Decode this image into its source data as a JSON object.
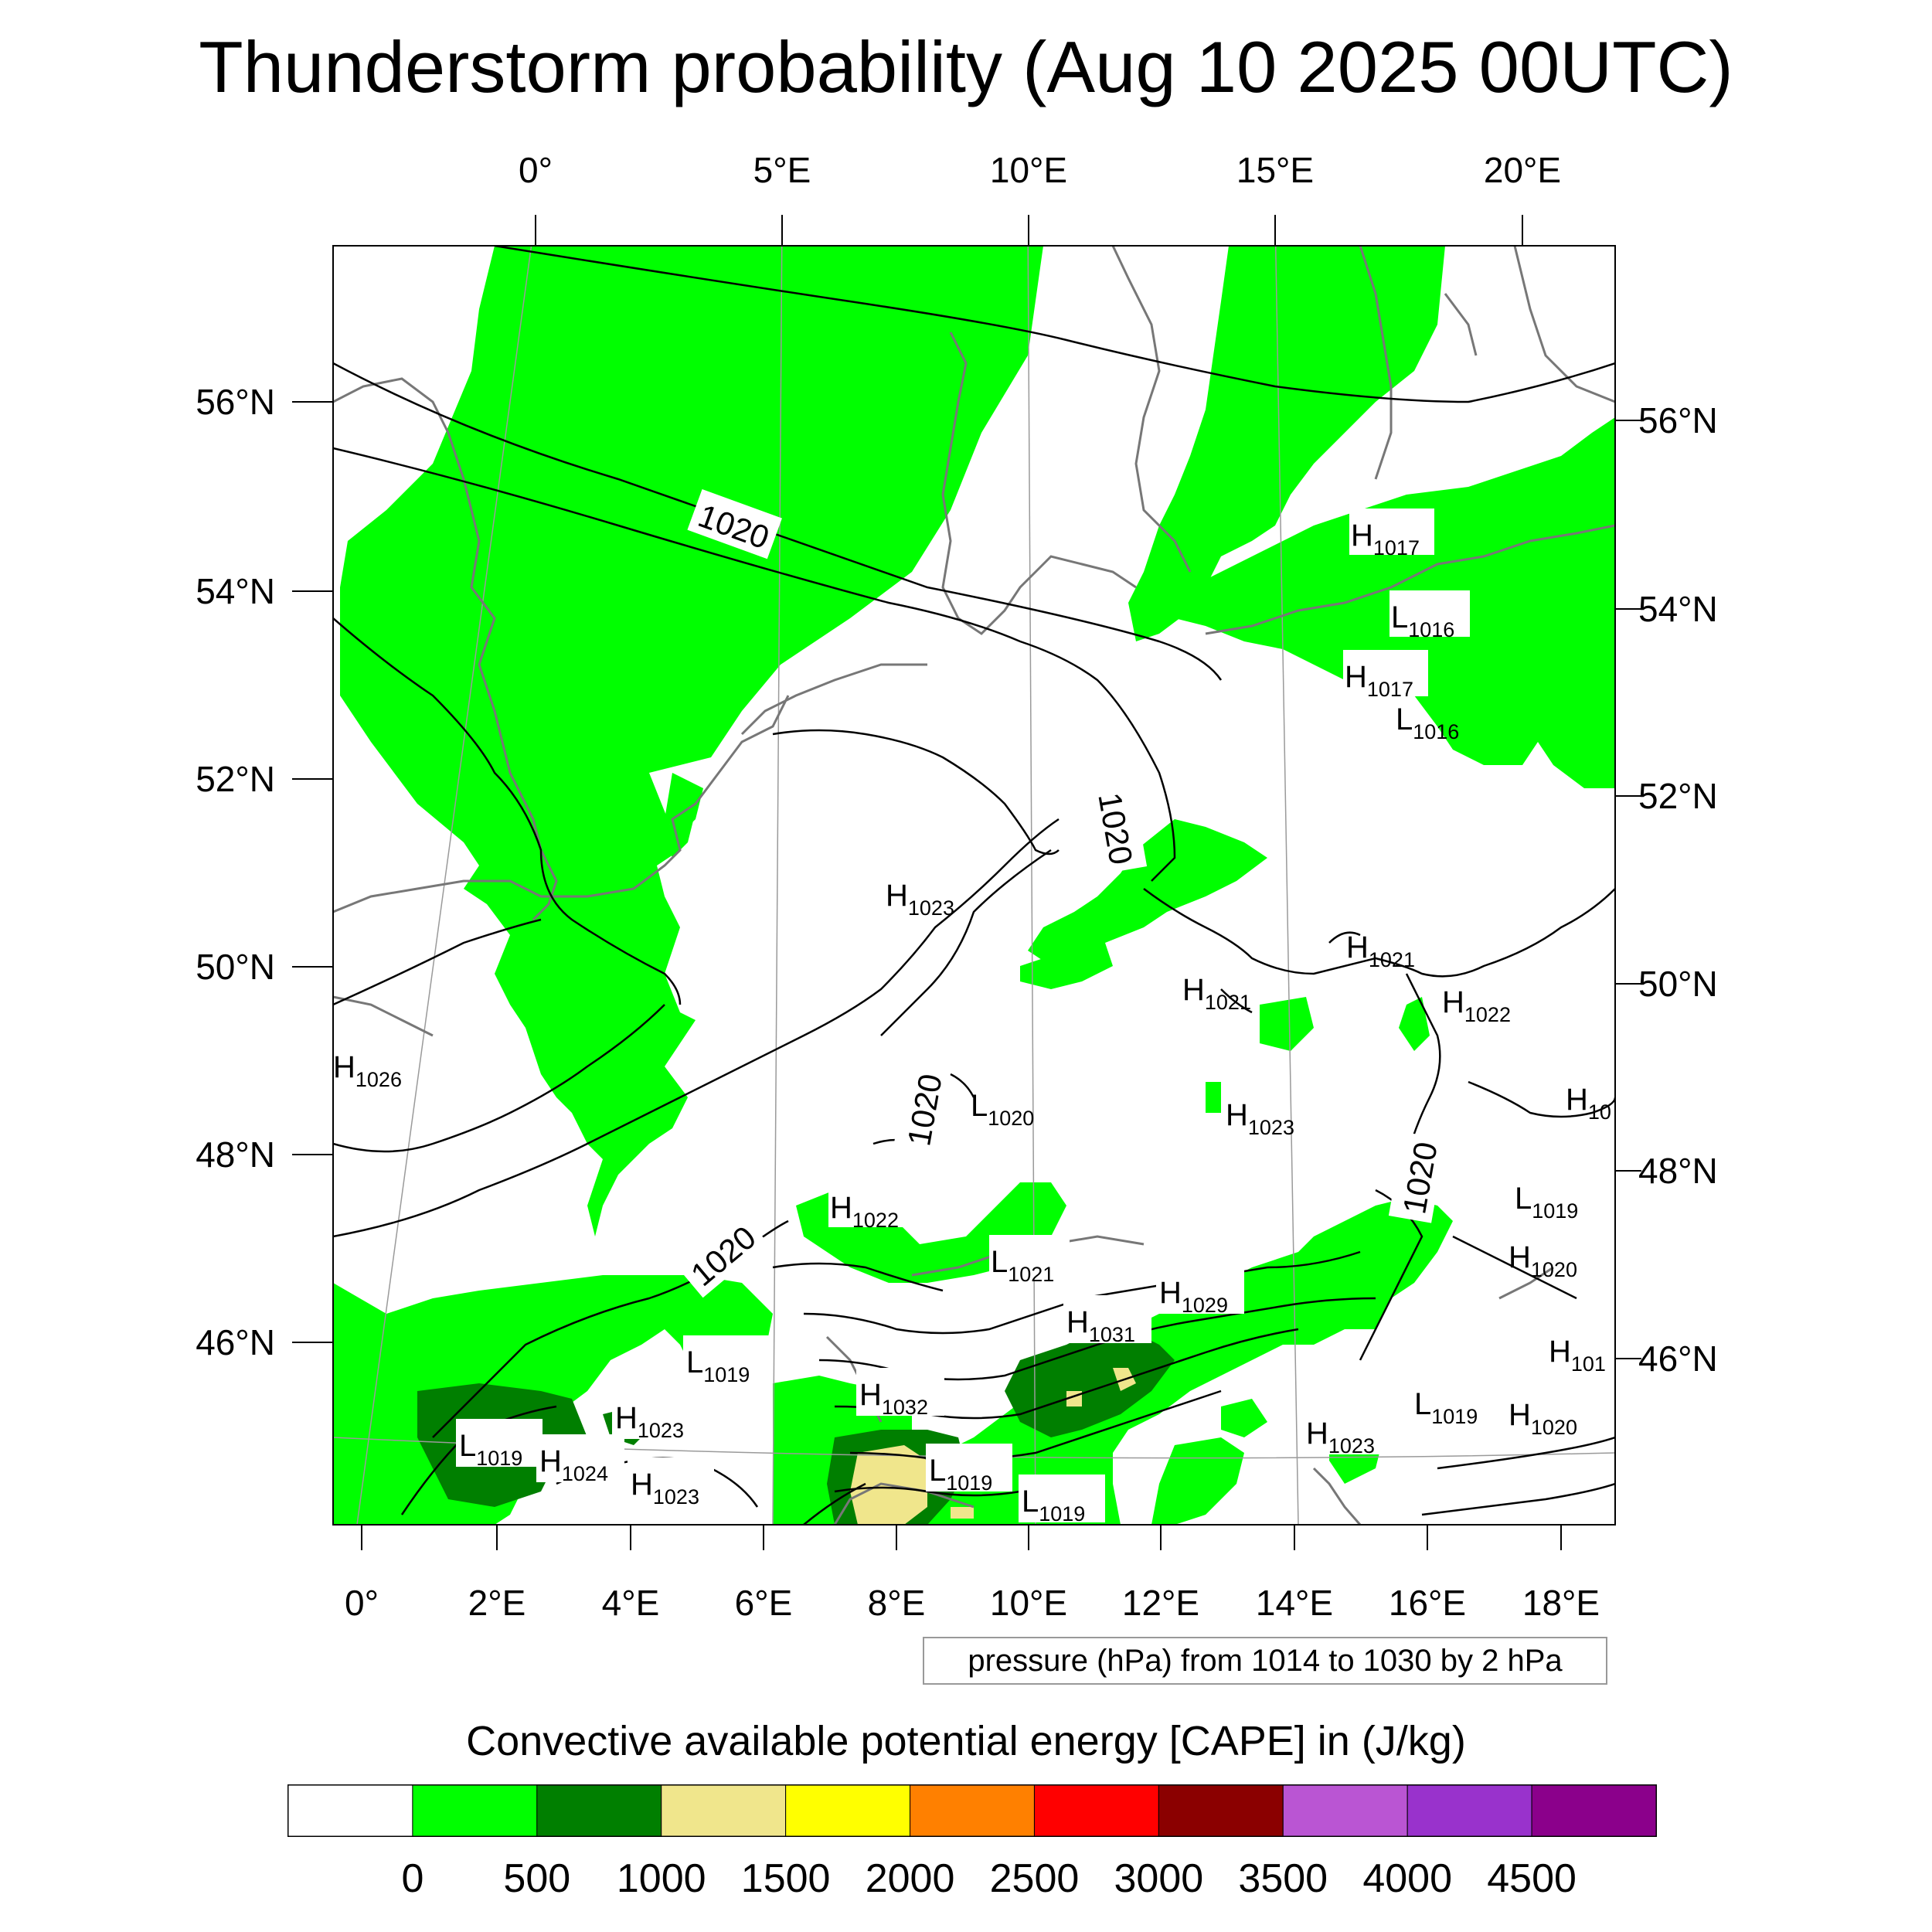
{
  "title": "Thunderstorm probability (Aug 10 2025 00UTC)",
  "top_lon_labels": [
    "0°",
    "5°E",
    "10°E",
    "15°E",
    "20°E"
  ],
  "bottom_lon_labels": [
    "0°",
    "2°E",
    "4°E",
    "6°E",
    "8°E",
    "10°E",
    "12°E",
    "14°E",
    "16°E",
    "18°E"
  ],
  "left_lat_labels": [
    "56°N",
    "54°N",
    "52°N",
    "50°N",
    "48°N",
    "46°N"
  ],
  "right_lat_labels": [
    "56°N",
    "54°N",
    "52°N",
    "50°N",
    "48°N",
    "46°N"
  ],
  "contour_labels": [
    "1020",
    "1020",
    "1020",
    "1020",
    "1020"
  ],
  "pressure_centers": [
    {
      "type": "H",
      "value": "1017"
    },
    {
      "type": "L",
      "value": "1016"
    },
    {
      "type": "H",
      "value": "1017"
    },
    {
      "type": "L",
      "value": "1016"
    },
    {
      "type": "H",
      "value": "1023"
    },
    {
      "type": "H",
      "value": "1021"
    },
    {
      "type": "H",
      "value": "1021"
    },
    {
      "type": "H",
      "value": "1022"
    },
    {
      "type": "H",
      "value": "1026"
    },
    {
      "type": "L",
      "value": "1020"
    },
    {
      "type": "H",
      "value": "1023"
    },
    {
      "type": "H",
      "value": "10"
    },
    {
      "type": "L",
      "value": "1019"
    },
    {
      "type": "H",
      "value": "1020"
    },
    {
      "type": "H",
      "value": "1022"
    },
    {
      "type": "L",
      "value": "1021"
    },
    {
      "type": "H",
      "value": "1029"
    },
    {
      "type": "H",
      "value": "1031"
    },
    {
      "type": "L",
      "value": "1019"
    },
    {
      "type": "H",
      "value": "101"
    },
    {
      "type": "H",
      "value": "1032"
    },
    {
      "type": "H",
      "value": "1023"
    },
    {
      "type": "L",
      "value": "1019"
    },
    {
      "type": "H",
      "value": "1024"
    },
    {
      "type": "H",
      "value": "1023"
    },
    {
      "type": "L",
      "value": "1019"
    },
    {
      "type": "L",
      "value": "1019"
    },
    {
      "type": "L",
      "value": "1019"
    },
    {
      "type": "H",
      "value": "1020"
    },
    {
      "type": "H",
      "value": "1023"
    }
  ],
  "pressure_note": "pressure (hPa) from 1014 to 1030 by 2 hPa",
  "colorbar": {
    "title": "Convective available potential energy [CAPE] in (J/kg)",
    "colors": [
      "#ffffff",
      "#00ff00",
      "#007f00",
      "#f0e68c",
      "#ffff00",
      "#ff8000",
      "#ff0000",
      "#8b0000",
      "#ba55d3",
      "#9932cc",
      "#8b008b"
    ],
    "tick_labels": [
      "0",
      "500",
      "1000",
      "1500",
      "2000",
      "2500",
      "3000",
      "3500",
      "4000",
      "4500"
    ]
  }
}
